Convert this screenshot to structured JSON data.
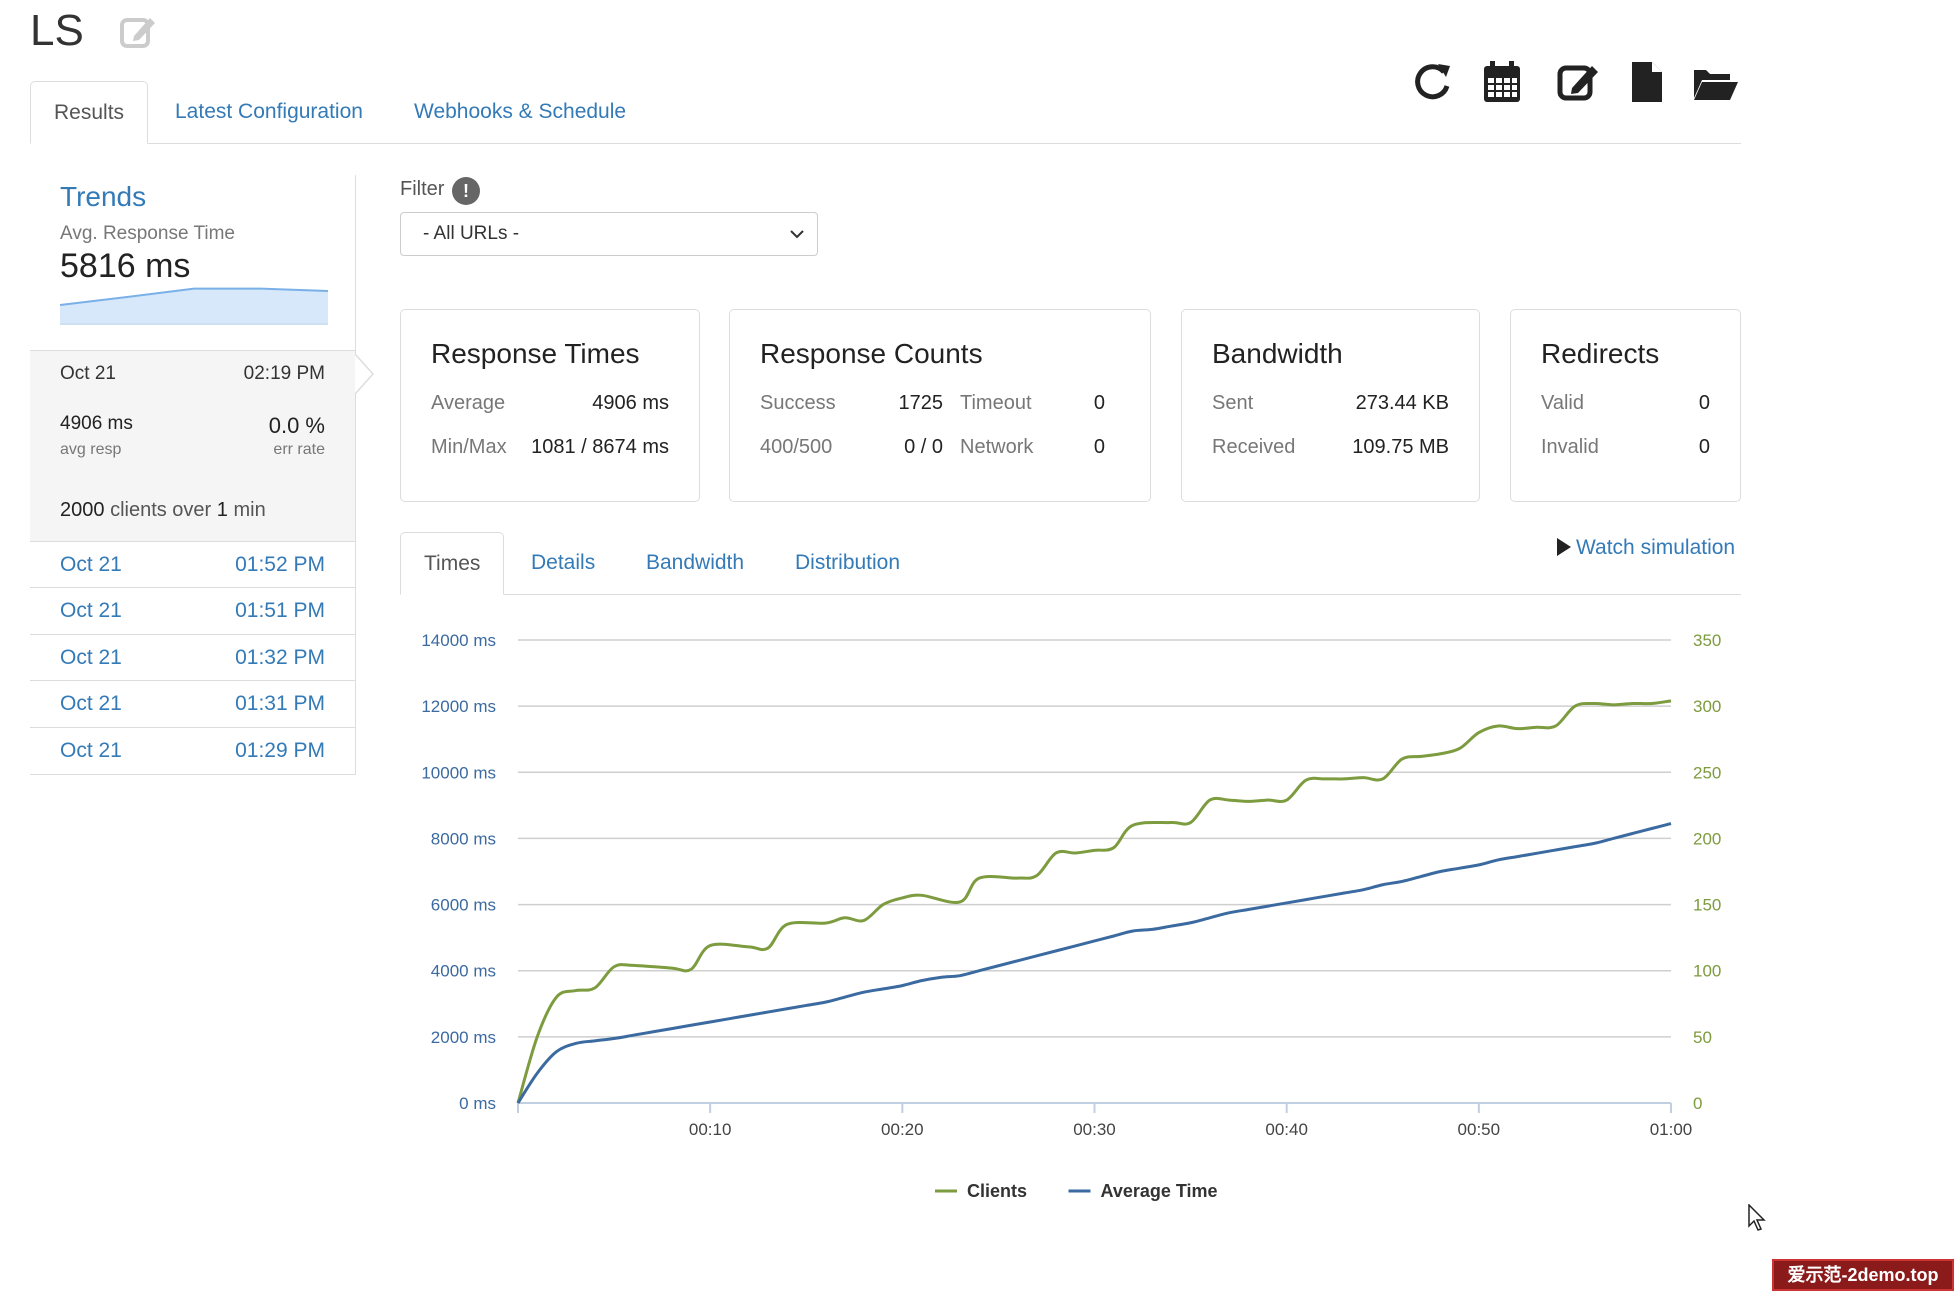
{
  "title": "LS",
  "toolbar": {
    "icons": [
      "refresh-icon",
      "calendar-icon",
      "edit-icon",
      "file-icon",
      "folder-open-icon"
    ]
  },
  "main_tabs": [
    {
      "label": "Results",
      "active": true
    },
    {
      "label": "Latest Configuration",
      "active": false
    },
    {
      "label": "Webhooks & Schedule",
      "active": false
    }
  ],
  "trends": {
    "title": "Trends",
    "avg_label": "Avg. Response Time",
    "avg_value": "5816 ms",
    "current": {
      "date": "Oct 21",
      "time": "02:19 PM",
      "avg_resp_value": "4906 ms",
      "avg_resp_label": "avg resp",
      "err_rate_value": "0.0 %",
      "err_rate_label": "err rate",
      "clients": "2000",
      "clients_mid": "clients over",
      "duration": "1",
      "duration_unit": "min"
    },
    "runs": [
      {
        "date": "Oct 21",
        "time": "01:52 PM"
      },
      {
        "date": "Oct 21",
        "time": "01:51 PM"
      },
      {
        "date": "Oct 21",
        "time": "01:32 PM"
      },
      {
        "date": "Oct 21",
        "time": "01:31 PM"
      },
      {
        "date": "Oct 21",
        "time": "01:29 PM"
      }
    ]
  },
  "filter": {
    "label": "Filter",
    "help": "!",
    "selected": "- All URLs -"
  },
  "cards": {
    "response_times": {
      "title": "Response Times",
      "average_label": "Average",
      "average_value": "4906 ms",
      "minmax_label": "Min/Max",
      "minmax_value": "1081 / 8674 ms"
    },
    "response_counts": {
      "title": "Response Counts",
      "success_label": "Success",
      "success_value": "1725",
      "timeout_label": "Timeout",
      "timeout_value": "0",
      "e400_label": "400/500",
      "e400_value": "0 / 0",
      "network_label": "Network",
      "network_value": "0"
    },
    "bandwidth": {
      "title": "Bandwidth",
      "sent_label": "Sent",
      "sent_value": "273.44 KB",
      "received_label": "Received",
      "received_value": "109.75 MB"
    },
    "redirects": {
      "title": "Redirects",
      "valid_label": "Valid",
      "valid_value": "0",
      "invalid_label": "Invalid",
      "invalid_value": "0"
    }
  },
  "chart_tabs": [
    {
      "label": "Times",
      "active": true
    },
    {
      "label": "Details",
      "active": false
    },
    {
      "label": "Bandwidth",
      "active": false
    },
    {
      "label": "Distribution",
      "active": false
    }
  ],
  "watch_simulation": "Watch simulation",
  "chart_data": {
    "type": "line",
    "x_unit": "seconds",
    "x_tick_labels": [
      "00:10",
      "00:20",
      "00:30",
      "00:40",
      "00:50",
      "01:00"
    ],
    "x_ticks": [
      10,
      20,
      30,
      40,
      50,
      60
    ],
    "xlim": [
      0,
      60
    ],
    "y_left": {
      "ticks": [
        0,
        2000,
        4000,
        6000,
        8000,
        10000,
        12000,
        14000
      ],
      "unit": "ms",
      "lim": [
        0,
        14000
      ],
      "color": "#3b6aa0"
    },
    "y_right": {
      "ticks": [
        0,
        50,
        100,
        150,
        200,
        250,
        300,
        350
      ],
      "lim": [
        0,
        350
      ],
      "color": "#7d9b3f"
    },
    "grid": true,
    "legend_position": "bottom",
    "series": [
      {
        "name": "Clients",
        "axis": "right",
        "color": "#7d9b3f",
        "x": [
          0,
          1,
          2,
          3,
          4,
          5,
          6,
          8,
          9,
          10,
          12,
          13,
          14,
          16,
          17,
          18,
          19,
          20,
          21,
          23,
          24,
          26,
          27,
          28,
          29,
          30,
          31,
          32,
          34,
          35,
          36,
          37,
          38,
          39,
          40,
          41,
          42,
          43,
          44,
          45,
          46,
          47,
          48,
          49,
          50,
          51,
          52,
          53,
          54,
          55,
          56,
          57,
          58,
          59,
          60
        ],
        "values": [
          0,
          50,
          80,
          85,
          87,
          103,
          104,
          102,
          101,
          119,
          118,
          117,
          135,
          136,
          140,
          138,
          150,
          155,
          157,
          152,
          170,
          170,
          172,
          189,
          189,
          191,
          193,
          210,
          212,
          212,
          229,
          229,
          228,
          229,
          229,
          244,
          245,
          245,
          246,
          245,
          260,
          262,
          264,
          268,
          280,
          285,
          283,
          284,
          285,
          300,
          302,
          301,
          302,
          302,
          304
        ]
      },
      {
        "name": "Average Time",
        "axis": "left",
        "color": "#3b6aa0",
        "x": [
          0,
          1,
          2,
          3,
          4,
          5,
          6,
          7,
          8,
          9,
          10,
          11,
          12,
          13,
          14,
          15,
          16,
          17,
          18,
          19,
          20,
          21,
          22,
          23,
          24,
          25,
          26,
          27,
          28,
          29,
          30,
          31,
          32,
          33,
          34,
          35,
          36,
          37,
          38,
          39,
          40,
          41,
          42,
          43,
          44,
          45,
          46,
          47,
          48,
          49,
          50,
          51,
          52,
          53,
          54,
          55,
          56,
          57,
          58,
          59,
          60
        ],
        "values": [
          0,
          900,
          1550,
          1800,
          1880,
          1950,
          2050,
          2150,
          2250,
          2350,
          2450,
          2550,
          2650,
          2750,
          2850,
          2950,
          3050,
          3200,
          3350,
          3450,
          3550,
          3700,
          3800,
          3850,
          4000,
          4150,
          4300,
          4450,
          4600,
          4750,
          4900,
          5050,
          5200,
          5250,
          5350,
          5450,
          5600,
          5750,
          5850,
          5950,
          6050,
          6150,
          6250,
          6350,
          6450,
          6600,
          6700,
          6850,
          7000,
          7100,
          7200,
          7350,
          7450,
          7550,
          7650,
          7750,
          7850,
          8000,
          8150,
          8300,
          8450
        ]
      }
    ]
  },
  "sparkline": {
    "values": [
      5000,
      5400,
      5816,
      5816,
      5700
    ]
  },
  "watermark": "爱示范-2demo.top"
}
